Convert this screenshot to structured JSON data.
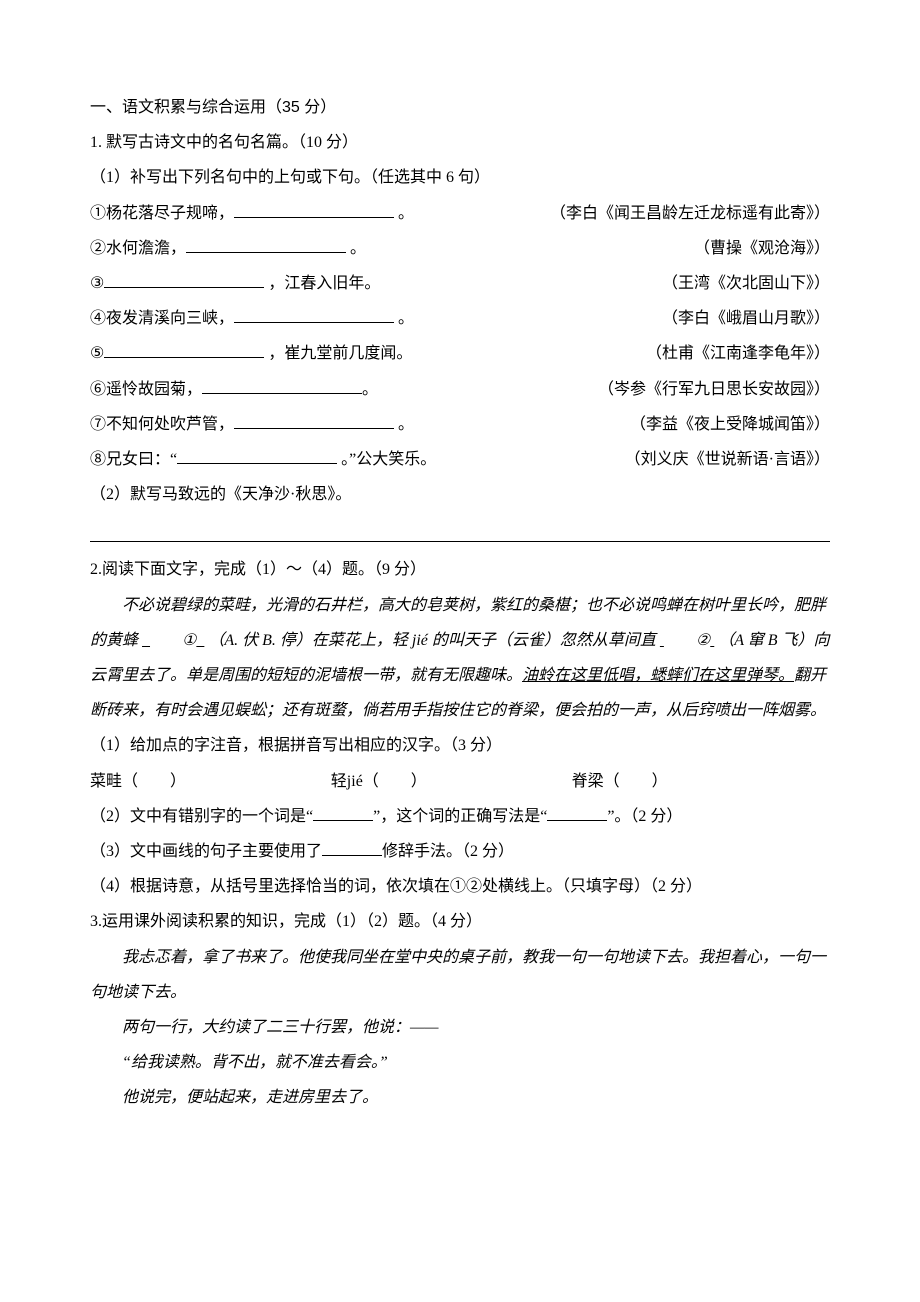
{
  "section": {
    "title": "一、语文积累与综合运用（35 分）"
  },
  "q1": {
    "stem": "1. 默写古诗文中的名句名篇。（10 分）",
    "sub1": "（1）补写出下列名句中的上句或下句。（任选其中 6 句）",
    "items": [
      {
        "num": "①",
        "text_before": "杨花落尽子规啼，",
        "text_after": " 。",
        "src": "（李白《闻王昌龄左迁龙标遥有此寄》）"
      },
      {
        "num": "②",
        "text_before": "水何澹澹，",
        "text_after": " 。",
        "src": "（曹操《观沧海》）"
      },
      {
        "num": "③",
        "text_before": "",
        "text_after": " ，江春入旧年。",
        "src": "（王湾《次北固山下》）"
      },
      {
        "num": "④",
        "text_before": "夜发清溪向三峡，",
        "text_after": " 。",
        "src": "（李白《峨眉山月歌》）"
      },
      {
        "num": "⑤",
        "text_before": "",
        "text_after": " ，崔九堂前几度闻。",
        "src": "（杜甫《江南逢李龟年》）"
      },
      {
        "num": "⑥",
        "text_before": "遥怜故园菊，",
        "text_after": "。",
        "src": "（岑参《行军九日思长安故园》）"
      },
      {
        "num": "⑦",
        "text_before": "不知何处吹芦管，",
        "text_after": " 。",
        "src": "（李益《夜上受降城闻笛》）"
      },
      {
        "num": "⑧",
        "text_before": "兄女曰：“",
        "text_after": " 。”公大笑乐。",
        "src": "（刘义庆《世说新语·言语》）"
      }
    ],
    "sub2": "（2）默写马致远的《天净沙·秋思》。"
  },
  "q2": {
    "stem": "2.阅读下面文字，完成（1）～（4）题。（9 分）",
    "passage_a": "不必说碧绿的菜畦，光滑的石井栏，高大的皂荚树，紫红的桑椹；也不必说鸣蝉在树叶里长吟，肥胖的黄蜂",
    "blank1_label": "①",
    "choice1": "（A. 伏 B. 停）在菜花上，轻 jié 的叫天子（云雀）忽然从草间直",
    "blank2_label": "②",
    "choice2": "（A 窜 B 飞）向云霄里去了。单是周围的短短的泥墙根一带，就有无限趣味。",
    "underlined": "油蛉在这里低唱，蟋蟀们在这里弹琴。",
    "passage_b": "翻开断砖来，有时会遇见蜈蚣；还有斑蝥，倘若用手指按住它的脊梁，便会拍的一声，从后窍喷出一阵烟雾。",
    "sub1": "（1）给加点的字注音，根据拼音写出相应的汉字。（3 分）",
    "pinyin_row": {
      "a": "菜畦（　　）",
      "b": "轻jié（　　）",
      "c": "脊梁（　　）"
    },
    "sub2_a": "（2）文中有错别字的一个词是“",
    "sub2_b": "”，这个词的正确写法是“",
    "sub2_c": "”。（2 分）",
    "sub3_a": "（3）文中画线的句子主要使用了",
    "sub3_b": "修辞手法。（2 分）",
    "sub4": "（4）根据诗意，从括号里选择恰当的词，依次填在①②处横线上。（只填字母）（2 分）"
  },
  "q3": {
    "stem": "3.运用课外阅读积累的知识，完成（1）（2）题。（4 分）",
    "p1": "我忐忑着，拿了书来了。他使我同坐在堂中央的桌子前，教我一句一句地读下去。我担着心，一句一句地读下去。",
    "p2": "两句一行，大约读了二三十行罢，他说：——",
    "p3": "“给我读熟。背不出，就不准去看会。”",
    "p4": "他说完，便站起来，走进房里去了。"
  }
}
